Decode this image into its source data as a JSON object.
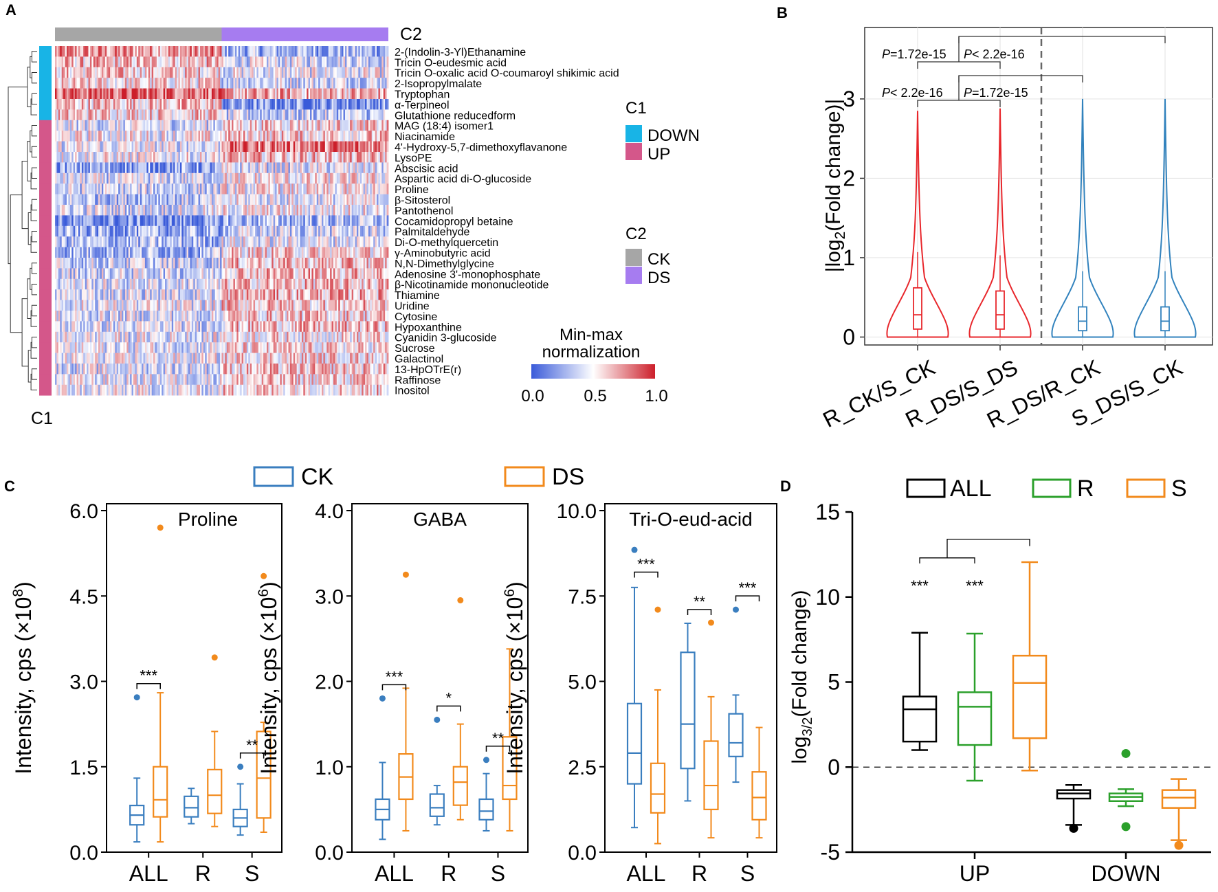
{
  "panels": {
    "A": "A",
    "B": "B",
    "C": "C",
    "D": "D"
  },
  "colors": {
    "down": "#18b4e6",
    "up": "#d4578a",
    "ck_bar": "#a6a6a6",
    "ds_bar": "#a67cf0",
    "hm_low": "#3a5bd9",
    "hm_mid": "#ffffff",
    "hm_high": "#cc1f2a",
    "red": "#e8262b",
    "blue": "#3182bd",
    "ck": "#3a7ebf",
    "ds": "#f28a1c",
    "all": "#000000",
    "r": "#2ba02b",
    "s": "#f28a1c",
    "grid": "#e6e6e6"
  },
  "heatmap": {
    "c2_label": "C2",
    "c1_label": "C1",
    "legend_c1": {
      "title": "C1",
      "items": [
        "DOWN",
        "UP"
      ]
    },
    "legend_c2": {
      "title": "C2",
      "items": [
        "CK",
        "DS"
      ]
    },
    "scale_title_1": "Min-max",
    "scale_title_2": "normalization",
    "scale_ticks": [
      "0.0",
      "0.5",
      "1.0"
    ],
    "rows": [
      {
        "name": "2-(Indolin-3-Yl)Ethanamine",
        "group": "DOWN",
        "ck": 0.72,
        "ds": 0.28
      },
      {
        "name": "Tricin O-eudesmic acid",
        "group": "DOWN",
        "ck": 0.62,
        "ds": 0.42
      },
      {
        "name": "Tricin O-oxalic acid O-coumaroyl shikimic acid",
        "group": "DOWN",
        "ck": 0.6,
        "ds": 0.45
      },
      {
        "name": "2-Isopropylmalate",
        "group": "DOWN",
        "ck": 0.55,
        "ds": 0.42
      },
      {
        "name": "Tryptophan",
        "group": "DOWN",
        "ck": 0.85,
        "ds": 0.66
      },
      {
        "name": "α-Terpineol",
        "group": "DOWN",
        "ck": 0.62,
        "ds": 0.18
      },
      {
        "name": "Glutathione reducedform",
        "group": "DOWN",
        "ck": 0.6,
        "ds": 0.35
      },
      {
        "name": "MAG (18:4) isomer1",
        "group": "UP",
        "ck": 0.42,
        "ds": 0.58
      },
      {
        "name": "Niacinamide",
        "group": "UP",
        "ck": 0.5,
        "ds": 0.6
      },
      {
        "name": "4'-Hydroxy-5,7-dimethoxyflavanone",
        "group": "UP",
        "ck": 0.45,
        "ds": 0.8
      },
      {
        "name": "LysoPE",
        "group": "UP",
        "ck": 0.48,
        "ds": 0.62
      },
      {
        "name": "Abscisic acid",
        "group": "UP",
        "ck": 0.22,
        "ds": 0.42
      },
      {
        "name": "Aspartic acid di-O-glucoside",
        "group": "UP",
        "ck": 0.4,
        "ds": 0.52
      },
      {
        "name": "Proline",
        "group": "UP",
        "ck": 0.38,
        "ds": 0.5
      },
      {
        "name": "β-Sitosterol",
        "group": "UP",
        "ck": 0.35,
        "ds": 0.45
      },
      {
        "name": "Pantothenol",
        "group": "UP",
        "ck": 0.42,
        "ds": 0.5
      },
      {
        "name": "Cocamidopropyl betaine",
        "group": "UP",
        "ck": 0.15,
        "ds": 0.3
      },
      {
        "name": "Palmitaldehyde",
        "group": "UP",
        "ck": 0.25,
        "ds": 0.38
      },
      {
        "name": "Di-O-methylquercetin",
        "group": "UP",
        "ck": 0.3,
        "ds": 0.45
      },
      {
        "name": "γ-Aminobutyric acid",
        "group": "UP",
        "ck": 0.3,
        "ds": 0.58
      },
      {
        "name": "N,N-Dimethylglycine",
        "group": "UP",
        "ck": 0.38,
        "ds": 0.62
      },
      {
        "name": "Adenosine 3'-monophosphate",
        "group": "UP",
        "ck": 0.4,
        "ds": 0.65
      },
      {
        "name": "β-Nicotinamide mononucleotide",
        "group": "UP",
        "ck": 0.42,
        "ds": 0.62
      },
      {
        "name": "Thiamine",
        "group": "UP",
        "ck": 0.42,
        "ds": 0.65
      },
      {
        "name": "Uridine",
        "group": "UP",
        "ck": 0.45,
        "ds": 0.62
      },
      {
        "name": "Cytosine",
        "group": "UP",
        "ck": 0.42,
        "ds": 0.6
      },
      {
        "name": "Hypoxanthine",
        "group": "UP",
        "ck": 0.42,
        "ds": 0.62
      },
      {
        "name": "Cyanidin 3-glucoside",
        "group": "UP",
        "ck": 0.45,
        "ds": 0.55
      },
      {
        "name": "Sucrose",
        "group": "UP",
        "ck": 0.45,
        "ds": 0.55
      },
      {
        "name": "Galactinol",
        "group": "UP",
        "ck": 0.45,
        "ds": 0.58
      },
      {
        "name": "13-HpOTrE(r)",
        "group": "UP",
        "ck": 0.42,
        "ds": 0.6
      },
      {
        "name": "Raffinose",
        "group": "UP",
        "ck": 0.45,
        "ds": 0.58
      },
      {
        "name": "Inositol",
        "group": "UP",
        "ck": 0.45,
        "ds": 0.6
      }
    ]
  },
  "chart_data": [
    {
      "panel": "B",
      "type": "violin",
      "ylabel": "|log2(Fold change)|",
      "ylim": [
        -0.1,
        3.9
      ],
      "yticks": [
        0,
        1,
        2,
        3
      ],
      "categories": [
        "R_CK/S_CK",
        "R_DS/S_DS",
        "R_DS/R_CK",
        "S_DS/S_CK"
      ],
      "series": [
        {
          "name": "R_CK/S_CK",
          "color": "red",
          "min": 0,
          "q1": 0.1,
          "median": 0.28,
          "q3": 0.62,
          "max": 2.85
        },
        {
          "name": "R_DS/S_DS",
          "color": "red",
          "min": 0,
          "q1": 0.1,
          "median": 0.28,
          "q3": 0.58,
          "max": 2.88
        },
        {
          "name": "R_DS/R_CK",
          "color": "blue",
          "min": 0,
          "q1": 0.08,
          "median": 0.2,
          "q3": 0.38,
          "max": 3.0
        },
        {
          "name": "S_DS/S_CK",
          "color": "blue",
          "min": 0,
          "q1": 0.08,
          "median": 0.2,
          "q3": 0.38,
          "max": 3.0
        }
      ],
      "annotations": [
        {
          "text": "P=1.72e-15",
          "p": "P",
          "rest": "=1.72e-15"
        },
        {
          "text": "P< 2.2e-16",
          "p": "P",
          "rest": "< 2.2e-16"
        },
        {
          "text": "P< 2.2e-16",
          "p": "P",
          "rest": "< 2.2e-16"
        },
        {
          "text": "P=1.72e-15",
          "p": "P",
          "rest": "=1.72e-15"
        }
      ]
    },
    {
      "panel": "C",
      "type": "box",
      "legend": [
        "CK",
        "DS"
      ],
      "groups": [
        "ALL",
        "R",
        "S"
      ],
      "subplots": [
        {
          "title": "Proline",
          "ylabel": "Intensity, cps (×10",
          "yexp": "8",
          "ylim": [
            0,
            6.0
          ],
          "yticks": [
            "0.0",
            "1.5",
            "3.0",
            "4.5",
            "6.0"
          ],
          "boxes": {
            "ALL": {
              "CK": [
                0.18,
                0.48,
                0.65,
                0.82,
                1.3,
                [
                  2.72
                ]
              ],
              "DS": [
                0.18,
                0.62,
                0.92,
                1.5,
                2.8,
                [
                  5.7
                ]
              ]
            },
            "R": {
              "CK": [
                0.5,
                0.62,
                0.78,
                0.98,
                1.12,
                []
              ],
              "DS": [
                0.45,
                0.68,
                1.0,
                1.45,
                2.12,
                [
                  3.42
                ]
              ]
            },
            "S": {
              "CK": [
                0.3,
                0.45,
                0.6,
                0.75,
                1.2,
                [
                  1.5
                ]
              ],
              "DS": [
                0.35,
                0.6,
                1.3,
                2.12,
                2.28,
                [
                  4.85
                ]
              ]
            }
          },
          "sig": {
            "ALL": "***",
            "R": "",
            "S": "**"
          }
        },
        {
          "title": "GABA",
          "ylabel": "Intensity, cps (×10",
          "yexp": "6",
          "ylim": [
            0,
            4.0
          ],
          "yticks": [
            "0.0",
            "1.0",
            "2.0",
            "3.0",
            "4.0"
          ],
          "boxes": {
            "ALL": {
              "CK": [
                0.15,
                0.38,
                0.5,
                0.62,
                1.05,
                [
                  1.8
                ]
              ],
              "DS": [
                0.25,
                0.62,
                0.88,
                1.15,
                1.92,
                [
                  3.25
                ]
              ]
            },
            "R": {
              "CK": [
                0.32,
                0.42,
                0.52,
                0.68,
                0.78,
                [
                  1.55
                ]
              ],
              "DS": [
                0.38,
                0.55,
                0.82,
                1.0,
                1.5,
                [
                  2.95
                ]
              ]
            },
            "S": {
              "CK": [
                0.25,
                0.38,
                0.48,
                0.62,
                0.92,
                [
                  1.08
                ]
              ],
              "DS": [
                0.25,
                0.62,
                0.78,
                1.35,
                2.38,
                []
              ]
            }
          },
          "sig": {
            "ALL": "***",
            "R": "*",
            "S": "**"
          }
        },
        {
          "title": "Tri-O-eud-acid",
          "ylabel": "Intensity, cps (×10",
          "yexp": "6",
          "ylim": [
            0,
            10.0
          ],
          "yticks": [
            "0.0",
            "2.5",
            "5.0",
            "7.5",
            "10.0"
          ],
          "boxes": {
            "ALL": {
              "CK": [
                0.72,
                2.0,
                2.9,
                4.35,
                7.75,
                [
                  8.85
                ]
              ],
              "DS": [
                0.25,
                1.15,
                1.7,
                2.6,
                4.75,
                [
                  7.1
                ]
              ]
            },
            "R": {
              "CK": [
                1.5,
                2.45,
                3.75,
                5.85,
                6.7,
                []
              ],
              "DS": [
                0.42,
                1.25,
                1.95,
                3.25,
                4.55,
                [
                  6.72
                ]
              ]
            },
            "S": {
              "CK": [
                2.05,
                2.8,
                3.2,
                4.05,
                4.6,
                [
                  7.1
                ]
              ],
              "DS": [
                0.42,
                0.95,
                1.6,
                2.35,
                3.65,
                []
              ]
            }
          },
          "sig": {
            "ALL": "***",
            "R": "**",
            "S": "***"
          }
        }
      ]
    },
    {
      "panel": "D",
      "type": "box",
      "legend": [
        "ALL",
        "R",
        "S"
      ],
      "categories": [
        "UP",
        "DOWN"
      ],
      "ylabel": "log",
      "ylabel_sub": "3/2",
      "ylabel_rest": "(Fold change)",
      "ylim": [
        -5,
        15
      ],
      "yticks": [
        "-5",
        "0",
        "5",
        "10",
        "15"
      ],
      "reference_line": 0,
      "boxes": {
        "UP": {
          "ALL": [
            1.0,
            1.5,
            3.4,
            4.15,
            7.9,
            []
          ],
          "R": [
            -0.8,
            1.3,
            3.55,
            4.4,
            7.85,
            []
          ],
          "S": [
            -0.2,
            1.7,
            4.95,
            6.55,
            12.05,
            []
          ]
        },
        "DOWN": {
          "ALL": [
            -3.4,
            -1.85,
            -1.55,
            -1.35,
            -1.05,
            [
              -3.6
            ]
          ],
          "R": [
            -2.3,
            -2.0,
            -1.75,
            -1.55,
            -1.3,
            [
              0.8,
              -3.5
            ]
          ],
          "S": [
            -4.3,
            -2.4,
            -1.8,
            -1.35,
            -0.7,
            [
              -4.6
            ]
          ]
        }
      },
      "sig": [
        "***",
        "***"
      ]
    }
  ]
}
